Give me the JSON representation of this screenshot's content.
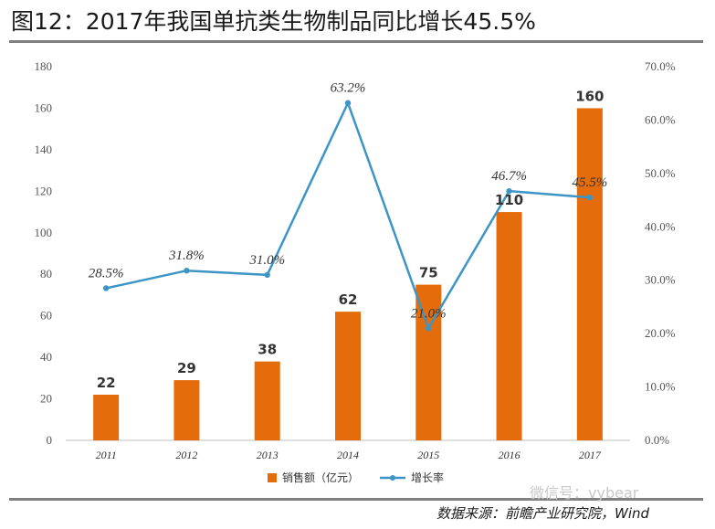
{
  "header": {
    "title": "图12：2017年我国单抗类生物制品同比增长45.5%"
  },
  "footer": {
    "source": "数据来源：前瞻产业研究院，Wind",
    "watermark": "微信号：vybear"
  },
  "colors": {
    "bar": "#e46c0a",
    "line": "#3d95c6",
    "axis": "#bfbfbf"
  },
  "chart_data": {
    "type": "bar",
    "title": "",
    "categories": [
      "2011",
      "2012",
      "2013",
      "2014",
      "2015",
      "2016",
      "2017"
    ],
    "series": [
      {
        "name": "销售额（亿元）",
        "type": "bar",
        "axis": "left",
        "values": [
          22,
          29,
          38,
          62,
          75,
          110,
          160
        ],
        "labels": [
          "22",
          "29",
          "38",
          "62",
          "75",
          "110",
          "160"
        ]
      },
      {
        "name": "增长率",
        "type": "line",
        "axis": "right",
        "values": [
          28.5,
          31.8,
          31.0,
          63.2,
          21.0,
          46.7,
          45.5
        ],
        "labels": [
          "28.5%",
          "31.8%",
          "31.0%",
          "63.2%",
          "21.0%",
          "46.7%",
          "45.5%"
        ]
      }
    ],
    "y_left": {
      "min": 0,
      "max": 180,
      "ticks": [
        "0",
        "20",
        "40",
        "60",
        "80",
        "100",
        "120",
        "140",
        "160",
        "180"
      ]
    },
    "y_right": {
      "min": 0,
      "max": 70,
      "ticks": [
        "0.0%",
        "10.0%",
        "20.0%",
        "30.0%",
        "40.0%",
        "50.0%",
        "60.0%",
        "70.0%"
      ]
    },
    "legend": {
      "position": "bottom",
      "items": [
        "销售额（亿元）",
        "增长率"
      ]
    },
    "grid": false
  }
}
